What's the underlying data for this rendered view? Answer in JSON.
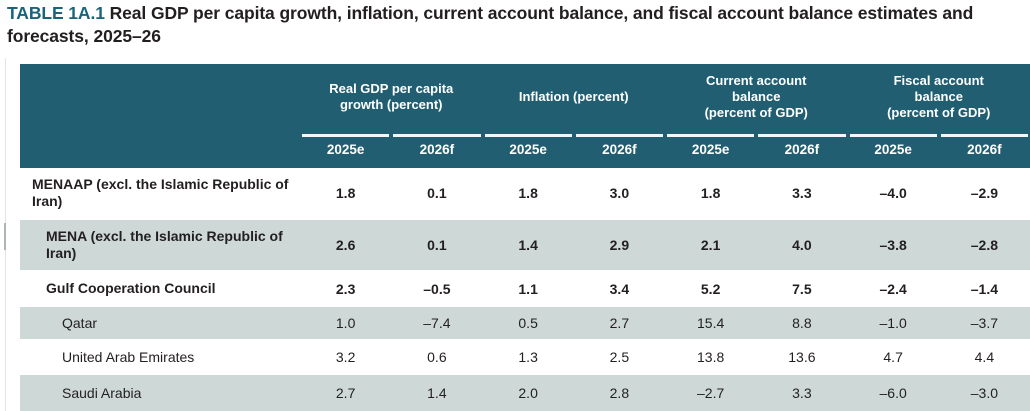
{
  "title": {
    "label": "TABLE 1A.1",
    "text": " Real GDP per capita growth, inflation, current account balance, and fiscal account balance estimates and forecasts, 2025–26"
  },
  "colors": {
    "header_teal": "#215e71",
    "row_stripe": "#cdd8d7",
    "title_accent": "#19647a",
    "text": "#231f20"
  },
  "table": {
    "groups": [
      {
        "label": "Real GDP per capita\ngrowth (percent)"
      },
      {
        "label": "Inflation (percent)"
      },
      {
        "label": "Current account\nbalance\n(percent of GDP)"
      },
      {
        "label": "Fiscal account\nbalance\n(percent of GDP)"
      }
    ],
    "subheaders": [
      "2025e",
      "2026f",
      "2025e",
      "2026f",
      "2025e",
      "2026f",
      "2025e",
      "2026f"
    ],
    "rows": [
      {
        "label": "MENAAP (excl. the Islamic Republic of Iran)",
        "values": [
          "1.8",
          "0.1",
          "1.8",
          "3.0",
          "1.8",
          "3.3",
          "–4.0",
          "–2.9"
        ]
      },
      {
        "label": "MENA (excl. the Islamic Republic of Iran)",
        "values": [
          "2.6",
          "0.1",
          "1.4",
          "2.9",
          "2.1",
          "4.0",
          "–3.8",
          "–2.8"
        ]
      },
      {
        "label": "Gulf Cooperation Council",
        "values": [
          "2.3",
          "–0.5",
          "1.1",
          "3.4",
          "5.2",
          "7.5",
          "–2.4",
          "–1.4"
        ]
      },
      {
        "label": "Qatar",
        "values": [
          "1.0",
          "–7.4",
          "0.5",
          "2.7",
          "15.4",
          "8.8",
          "–1.0",
          "–3.7"
        ]
      },
      {
        "label": "United Arab Emirates",
        "values": [
          "3.2",
          "0.6",
          "1.3",
          "2.5",
          "13.8",
          "13.6",
          "4.7",
          "4.4"
        ]
      },
      {
        "label": "Saudi Arabia",
        "values": [
          "2.7",
          "1.4",
          "2.0",
          "2.8",
          "–2.7",
          "3.3",
          "–6.0",
          "–3.0"
        ]
      }
    ]
  }
}
